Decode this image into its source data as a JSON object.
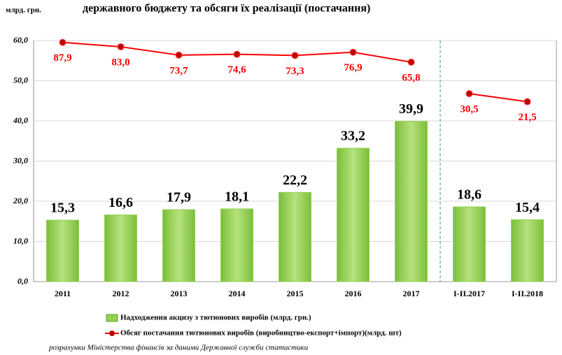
{
  "chart_data": {
    "type": "bar_line",
    "title": "державного бюджету та обсяги їх реалізації (постачання)",
    "y_label": "млрд. грн.",
    "note": "розрахунки Міністерства фінансів за даними Державної служби статистики",
    "categories": [
      "2011",
      "2012",
      "2013",
      "2014",
      "2015",
      "2016",
      "2017",
      "I-II.2017",
      "I-II.2018"
    ],
    "divider_index": 7,
    "series": [
      {
        "name": "Надходження акцизу з тютюнових виробів (млрд. грн.)",
        "type": "bar",
        "color": "#92d050",
        "values": [
          15.3,
          16.6,
          17.9,
          18.1,
          22.2,
          33.2,
          39.9,
          18.6,
          15.4
        ],
        "value_labels": [
          "15,3",
          "16,6",
          "17,9",
          "18,1",
          "22,2",
          "33,2",
          "39,9",
          "18,6",
          "15,4"
        ]
      },
      {
        "name": "Обсяг постачання тютюнових виробів (виробництво-експорт+імпорт)(млрд. шт)",
        "type": "line",
        "color": "#ff0000",
        "axis": "y2",
        "values": [
          87.9,
          83.0,
          73.7,
          74.6,
          73.3,
          76.9,
          65.8,
          30.5,
          21.5
        ],
        "value_labels": [
          "87,9",
          "83,0",
          "73,7",
          "74,6",
          "73,3",
          "76,9",
          "65,8",
          "30,5",
          "21,5"
        ]
      }
    ],
    "ylim": [
      0,
      60
    ],
    "yticks": [
      {
        "value": 0,
        "label": "0,0"
      },
      {
        "value": 10,
        "label": "10,0"
      },
      {
        "value": 20,
        "label": "20,0"
      },
      {
        "value": 30,
        "label": "30,0"
      },
      {
        "value": 40,
        "label": "40,0"
      },
      {
        "value": 50,
        "label": "50,0"
      },
      {
        "value": 60,
        "label": "60,0"
      }
    ],
    "y2lim": [
      -180,
      90
    ],
    "grid": true
  }
}
